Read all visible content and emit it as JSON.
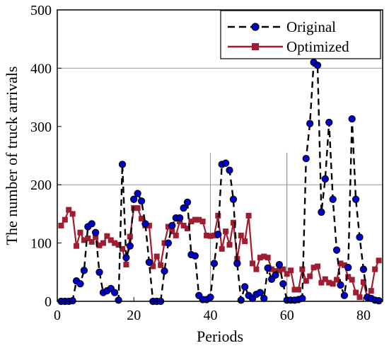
{
  "chart_data": {
    "type": "line",
    "xlabel": "Periods",
    "ylabel": "The number of truck arrivals",
    "xlim": [
      0,
      85
    ],
    "ylim": [
      0,
      500
    ],
    "xticks": [
      0,
      20,
      40,
      60,
      80
    ],
    "yticks": [
      0,
      100,
      200,
      300,
      400,
      500
    ],
    "legend_position": "top-right",
    "series": [
      {
        "name": "Original",
        "color": "#000000",
        "marker_color": "#0000cc",
        "marker": "circle",
        "line_style": "dashed",
        "x": [
          1,
          2,
          3,
          4,
          5,
          6,
          7,
          8,
          9,
          10,
          11,
          12,
          13,
          14,
          15,
          16,
          17,
          18,
          19,
          20,
          21,
          22,
          23,
          24,
          25,
          26,
          27,
          28,
          29,
          30,
          31,
          32,
          33,
          34,
          35,
          36,
          37,
          38,
          39,
          40,
          41,
          42,
          43,
          44,
          45,
          46,
          47,
          48,
          49,
          50,
          51,
          52,
          53,
          54,
          55,
          56,
          57,
          58,
          59,
          60,
          61,
          62,
          63,
          64,
          65,
          66,
          67,
          68,
          69,
          70,
          71,
          72,
          73,
          74,
          75,
          76,
          77,
          78,
          79,
          80,
          81,
          82,
          83,
          84
        ],
        "y": [
          0,
          0,
          0,
          1,
          35,
          30,
          53,
          128,
          133,
          118,
          50,
          15,
          18,
          22,
          15,
          2,
          235,
          75,
          95,
          175,
          185,
          172,
          133,
          67,
          0,
          0,
          0,
          52,
          100,
          130,
          143,
          143,
          160,
          170,
          80,
          78,
          10,
          3,
          3,
          7,
          65,
          115,
          235,
          237,
          225,
          175,
          65,
          2,
          25,
          10,
          5,
          12,
          15,
          5,
          57,
          38,
          45,
          63,
          30,
          2,
          2,
          2,
          3,
          5,
          245,
          305,
          410,
          405,
          153,
          210,
          307,
          175,
          88,
          28,
          10,
          58,
          313,
          175,
          110,
          55,
          7,
          5,
          2,
          1
        ]
      },
      {
        "name": "Optimized",
        "color": "#a01c30",
        "marker": "square",
        "line_style": "solid",
        "x": [
          1,
          2,
          3,
          4,
          5,
          6,
          7,
          8,
          9,
          10,
          11,
          12,
          13,
          14,
          15,
          16,
          17,
          18,
          19,
          20,
          21,
          22,
          23,
          24,
          25,
          26,
          27,
          28,
          29,
          30,
          31,
          32,
          33,
          34,
          35,
          36,
          37,
          38,
          39,
          40,
          41,
          42,
          43,
          44,
          45,
          46,
          47,
          48,
          49,
          50,
          51,
          52,
          53,
          54,
          55,
          56,
          57,
          58,
          59,
          60,
          61,
          62,
          63,
          64,
          65,
          66,
          67,
          68,
          69,
          70,
          71,
          72,
          73,
          74,
          75,
          76,
          77,
          78,
          79,
          80,
          81,
          82,
          83,
          84
        ],
        "y": [
          130,
          140,
          157,
          150,
          95,
          118,
          105,
          108,
          102,
          110,
          96,
          100,
          112,
          105,
          100,
          97,
          90,
          63,
          111,
          160,
          160,
          142,
          130,
          130,
          60,
          77,
          62,
          100,
          128,
          120,
          113,
          137,
          130,
          125,
          137,
          140,
          140,
          137,
          113,
          112,
          113,
          147,
          90,
          120,
          97,
          135,
          73,
          113,
          103,
          147,
          65,
          55,
          75,
          77,
          75,
          55,
          52,
          53,
          55,
          47,
          53,
          20,
          20,
          55,
          35,
          43,
          58,
          60,
          32,
          38,
          32,
          30,
          37,
          65,
          62,
          42,
          37,
          15,
          7,
          33,
          7,
          18,
          55,
          70
        ],
        "missing_note": ""
      }
    ]
  }
}
